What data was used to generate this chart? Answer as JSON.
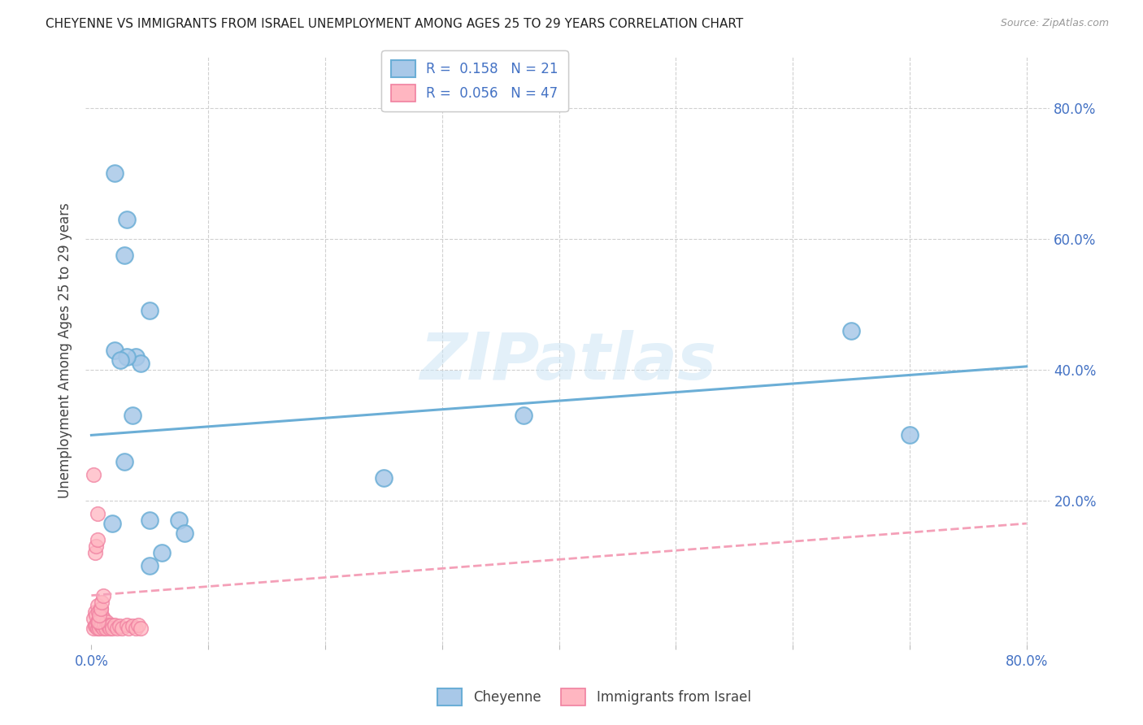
{
  "title": "CHEYENNE VS IMMIGRANTS FROM ISRAEL UNEMPLOYMENT AMONG AGES 25 TO 29 YEARS CORRELATION CHART",
  "source": "Source: ZipAtlas.com",
  "ylabel": "Unemployment Among Ages 25 to 29 years",
  "ytick_values": [
    0.2,
    0.4,
    0.6,
    0.8
  ],
  "xtick_values": [
    0.0,
    0.1,
    0.2,
    0.3,
    0.4,
    0.5,
    0.6,
    0.7,
    0.8
  ],
  "xlim": [
    -0.005,
    0.82
  ],
  "ylim": [
    -0.02,
    0.88
  ],
  "watermark": "ZIPatlas",
  "legend_blue_label": "R =  0.158   N = 21",
  "legend_pink_label": "R =  0.056   N = 47",
  "bottom_legend_cheyenne": "Cheyenne",
  "bottom_legend_israel": "Immigrants from Israel",
  "blue_scatter_color": "#a8c8e8",
  "blue_edge_color": "#6baed6",
  "pink_scatter_color": "#ffb6c1",
  "pink_edge_color": "#f080a0",
  "blue_line_color": "#6baed6",
  "pink_line_color": "#f4a0b8",
  "cheyenne_x": [
    0.02,
    0.03,
    0.028,
    0.05,
    0.02,
    0.038,
    0.042,
    0.028,
    0.37,
    0.65,
    0.7,
    0.05,
    0.075,
    0.08,
    0.06,
    0.05,
    0.03,
    0.025,
    0.018,
    0.035,
    0.25
  ],
  "cheyenne_y": [
    0.7,
    0.63,
    0.575,
    0.49,
    0.43,
    0.42,
    0.41,
    0.26,
    0.33,
    0.46,
    0.3,
    0.17,
    0.17,
    0.15,
    0.12,
    0.1,
    0.42,
    0.415,
    0.165,
    0.33,
    0.235
  ],
  "israel_x": [
    0.002,
    0.002,
    0.003,
    0.003,
    0.004,
    0.004,
    0.005,
    0.005,
    0.005,
    0.006,
    0.006,
    0.007,
    0.007,
    0.008,
    0.008,
    0.009,
    0.009,
    0.01,
    0.01,
    0.011,
    0.012,
    0.013,
    0.014,
    0.015,
    0.016,
    0.017,
    0.018,
    0.02,
    0.022,
    0.024,
    0.026,
    0.03,
    0.032,
    0.035,
    0.038,
    0.04,
    0.042,
    0.003,
    0.004,
    0.005,
    0.005,
    0.006,
    0.007,
    0.008,
    0.009,
    0.01,
    0.002
  ],
  "israel_y": [
    0.005,
    0.02,
    0.008,
    0.03,
    0.01,
    0.025,
    0.005,
    0.015,
    0.04,
    0.01,
    0.03,
    0.005,
    0.02,
    0.01,
    0.035,
    0.008,
    0.025,
    0.005,
    0.02,
    0.01,
    0.005,
    0.015,
    0.008,
    0.01,
    0.005,
    0.01,
    0.005,
    0.01,
    0.005,
    0.008,
    0.005,
    0.01,
    0.005,
    0.008,
    0.005,
    0.01,
    0.005,
    0.12,
    0.13,
    0.14,
    0.18,
    0.015,
    0.025,
    0.035,
    0.045,
    0.055,
    0.24
  ],
  "blue_line_x": [
    0.0,
    0.8
  ],
  "blue_line_y": [
    0.3,
    0.405
  ],
  "pink_line_x": [
    0.0,
    0.8
  ],
  "pink_line_y": [
    0.055,
    0.165
  ],
  "background_color": "#ffffff",
  "grid_color": "#d0d0d0"
}
